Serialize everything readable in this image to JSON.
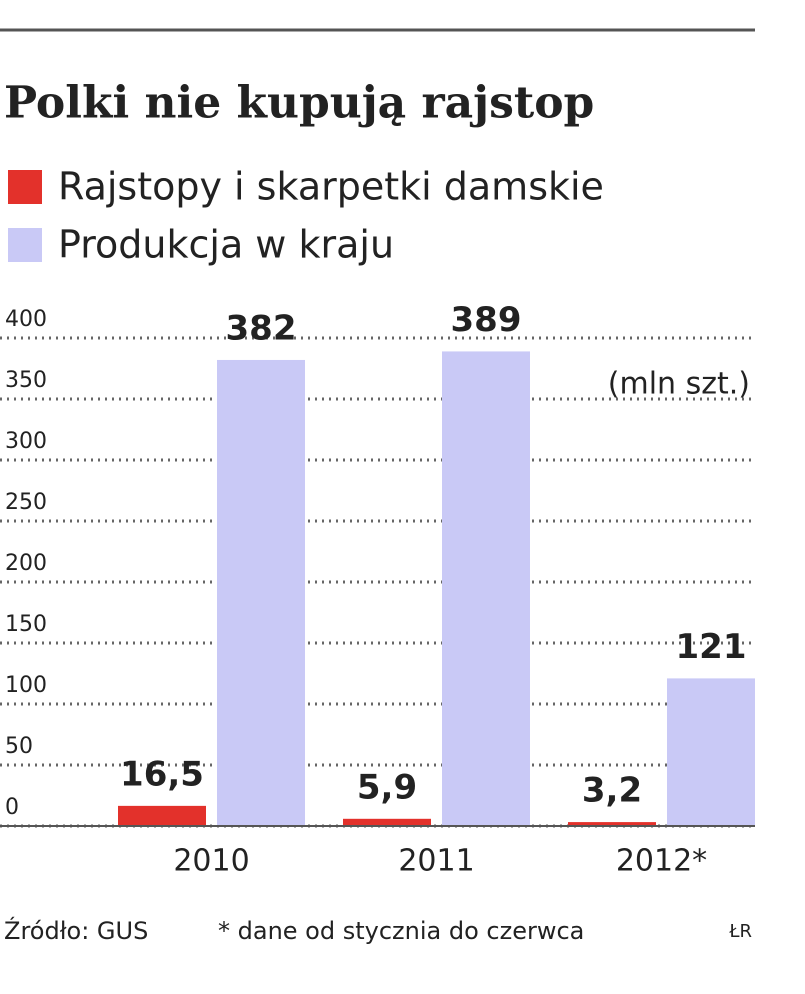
{
  "chart_data": {
    "type": "bar",
    "title": "Polki nie kupują rajstop",
    "unit_note": "(mln szt.)",
    "categories": [
      "2010",
      "2011",
      "2012*"
    ],
    "series": [
      {
        "name": "Rajstopy i skarpetki damskie",
        "color": "#e3312b",
        "values": [
          16.5,
          5.9,
          3.2
        ],
        "value_labels": [
          "16,5",
          "5,9",
          "3,2"
        ]
      },
      {
        "name": "Produkcja w kraju",
        "color": "#c9c9f6",
        "values": [
          382,
          389,
          121
        ]
      }
    ],
    "ylim": [
      0,
      400
    ],
    "yticks": [
      0,
      50,
      100,
      150,
      200,
      250,
      300,
      350,
      400
    ],
    "grid": true,
    "source": "Źródło: GUS",
    "note": "* dane od stycznia do czerwca",
    "credit": "ŁR"
  }
}
